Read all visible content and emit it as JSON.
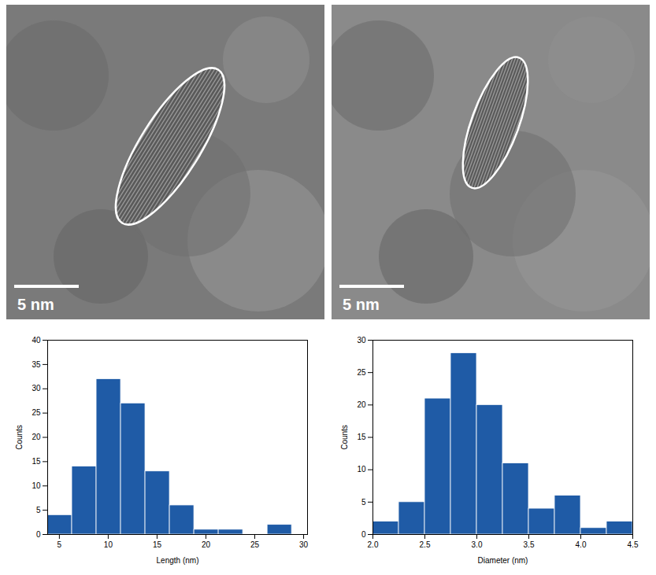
{
  "images": [
    {
      "scale_bar": "5 nm"
    },
    {
      "scale_bar": "5 nm"
    }
  ],
  "chart_data": [
    {
      "type": "histogram",
      "x_label": "Length (nm)",
      "y_label": "Counts",
      "bins": [
        3.8,
        6.3,
        8.8,
        11.3,
        13.8,
        16.3,
        18.8,
        21.3,
        23.8,
        26.3,
        28.8
      ],
      "counts": [
        4,
        14,
        32,
        27,
        13,
        6,
        1,
        1,
        0,
        2
      ],
      "color": "#1f5ba6",
      "xlim": [
        3.8,
        30.4
      ],
      "xticks": [
        5,
        10,
        15,
        20,
        25,
        30
      ],
      "ylim": [
        0,
        40
      ],
      "yticks": [
        0,
        5,
        10,
        15,
        20,
        25,
        30,
        35,
        40
      ]
    },
    {
      "type": "histogram",
      "x_label": "Diameter (nm)",
      "y_label": "Counts",
      "bins": [
        2.0,
        2.25,
        2.5,
        2.75,
        3.0,
        3.25,
        3.5,
        3.75,
        4.0,
        4.25,
        4.5
      ],
      "counts": [
        2,
        5,
        21,
        28,
        20,
        11,
        4,
        6,
        1,
        2
      ],
      "color": "#1f5ba6",
      "xlim": [
        2,
        4.5
      ],
      "xticks": [
        {
          "value": 2,
          "label": "2.0"
        },
        {
          "value": 2.5,
          "label": "2.5"
        },
        {
          "value": 3,
          "label": "3.0"
        },
        {
          "value": 3.5,
          "label": "3.5"
        },
        {
          "value": 4,
          "label": "4.0"
        },
        {
          "value": 4.5,
          "label": "4.5"
        }
      ],
      "ylim": [
        0,
        30
      ],
      "yticks": [
        0,
        5,
        10,
        15,
        20,
        25,
        30
      ]
    }
  ]
}
